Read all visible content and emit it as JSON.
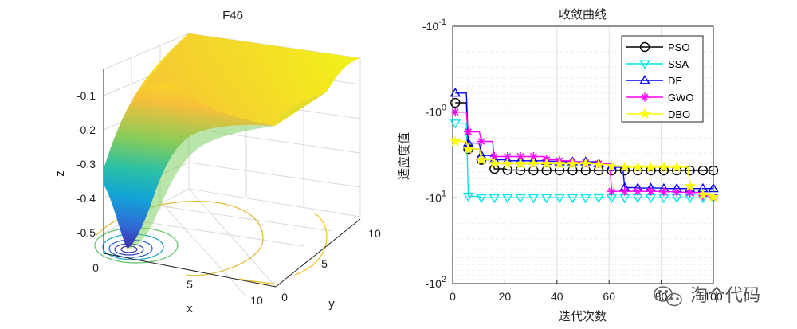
{
  "chart_data": [
    {
      "type": "surface3d",
      "title": "F46",
      "xlabel": "x",
      "ylabel": "y",
      "zlabel": "z",
      "x_ticks": [
        "0",
        "5",
        "10"
      ],
      "y_ticks": [
        "0",
        "5",
        "10"
      ],
      "z_ticks": [
        "-0.5",
        "-0.4",
        "-0.3",
        "-0.2",
        "-0.1"
      ],
      "xlim": [
        0,
        10
      ],
      "ylim": [
        0,
        10
      ],
      "zlim": [
        -0.55,
        -0.05
      ],
      "colormap": [
        "#3e26a8",
        "#2f6bd6",
        "#12a4d6",
        "#2bc0a4",
        "#88cc5a",
        "#f7bf3a",
        "#f4e21a",
        "#f2f219"
      ],
      "contour_colors": [
        "#3a2aa0",
        "#1b66c8",
        "#1aa5c8",
        "#5fc36b",
        "#e2b82d",
        "#f0c41e"
      ]
    },
    {
      "type": "line",
      "title": "收敛曲线",
      "xlabel": "迭代次数",
      "ylabel": "适应度值",
      "xlim": [
        0,
        100
      ],
      "x_ticks": [
        "0",
        "20",
        "40",
        "60",
        "80",
        "100"
      ],
      "y_scale": "symlog",
      "ylim": [
        -100,
        -0.1
      ],
      "y_tick_labels": [
        {
          "base": "-10",
          "exp": "-1"
        },
        {
          "base": "-10",
          "exp": "0"
        },
        {
          "base": "-10",
          "exp": "1"
        },
        {
          "base": "-10",
          "exp": "2"
        }
      ],
      "x": [
        1,
        6,
        11,
        16,
        21,
        26,
        31,
        36,
        41,
        46,
        51,
        56,
        61,
        66,
        71,
        76,
        81,
        86,
        91,
        96,
        100
      ],
      "series": [
        {
          "name": "PSO",
          "color": "#000000",
          "marker": "circle",
          "values": [
            -0.78,
            -2.7,
            -3.6,
            -4.6,
            -4.75,
            -4.8,
            -4.8,
            -4.8,
            -4.8,
            -4.8,
            -4.8,
            -4.8,
            -4.8,
            -4.8,
            -4.8,
            -4.8,
            -4.8,
            -4.8,
            -4.8,
            -4.8,
            -4.8
          ]
        },
        {
          "name": "SSA",
          "color": "#00e5e5",
          "marker": "triangle-down",
          "values": [
            -1.35,
            -9.6,
            -10.0,
            -10.0,
            -10.0,
            -10.0,
            -10.0,
            -10.0,
            -10.0,
            -10.0,
            -10.0,
            -10.0,
            -10.0,
            -10.0,
            -10.0,
            -10.0,
            -10.0,
            -10.0,
            -10.0,
            -10.0,
            -10.0
          ]
        },
        {
          "name": "DE",
          "color": "#0000ff",
          "marker": "triangle-up",
          "values": [
            -0.6,
            -2.3,
            -3.2,
            -3.6,
            -3.7,
            -3.7,
            -3.7,
            -3.75,
            -3.8,
            -3.8,
            -3.8,
            -4.0,
            -4.4,
            -7.6,
            -7.7,
            -7.7,
            -7.8,
            -7.8,
            -7.8,
            -7.8,
            -7.8
          ]
        },
        {
          "name": "GWO",
          "color": "#ff00ff",
          "marker": "star",
          "values": [
            -1.0,
            -1.7,
            -2.2,
            -3.3,
            -3.3,
            -3.3,
            -3.3,
            -3.6,
            -3.7,
            -3.8,
            -3.9,
            -4.0,
            -8.4,
            -8.4,
            -8.4,
            -8.4,
            -8.5,
            -8.6,
            -8.7,
            -9.5,
            -9.8
          ]
        },
        {
          "name": "DBO",
          "color": "#ffff00",
          "marker": "pentagram",
          "values": [
            -2.2,
            -2.7,
            -3.6,
            -4.0,
            -4.0,
            -4.0,
            -4.0,
            -4.0,
            -4.0,
            -4.0,
            -4.0,
            -4.1,
            -4.3,
            -4.4,
            -4.4,
            -4.4,
            -4.4,
            -4.4,
            -7.3,
            -9.2,
            -9.8
          ]
        }
      ],
      "legend_position": "top-right"
    }
  ],
  "watermark": "淘个代码"
}
